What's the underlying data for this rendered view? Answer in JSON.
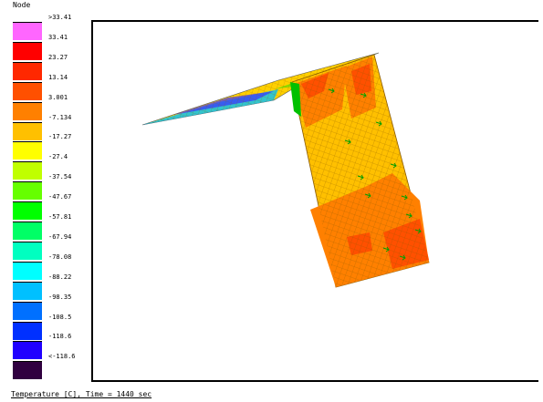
{
  "legend": {
    "title": "Node",
    "labels": [
      ">33.41",
      "33.41",
      "23.27",
      "13.14",
      "3.001",
      "-7.134",
      "-17.27",
      "-27.4",
      "-37.54",
      "-47.67",
      "-57.81",
      "-67.94",
      "-78.08",
      "-88.22",
      "-98.35",
      "-108.5",
      "-118.6",
      "<-118.6"
    ],
    "colors": [
      "#ff66ff",
      "#ff0000",
      "#ff2800",
      "#ff5000",
      "#ff8000",
      "#ffc000",
      "#ffff00",
      "#c0ff00",
      "#66ff00",
      "#00ff00",
      "#00ff66",
      "#00ffc0",
      "#00ffff",
      "#00c0ff",
      "#0070ff",
      "#0030ff",
      "#2000ff",
      "#300040"
    ]
  },
  "status": {
    "text": "Temperature [C], Time = 1440 sec"
  },
  "colors": {
    "mesh_hot": "#ff8000",
    "mesh_warm": "#ffc000",
    "mesh_red": "#ff5000",
    "mesh_blue": "#0030ff",
    "vector": "#00a000"
  }
}
